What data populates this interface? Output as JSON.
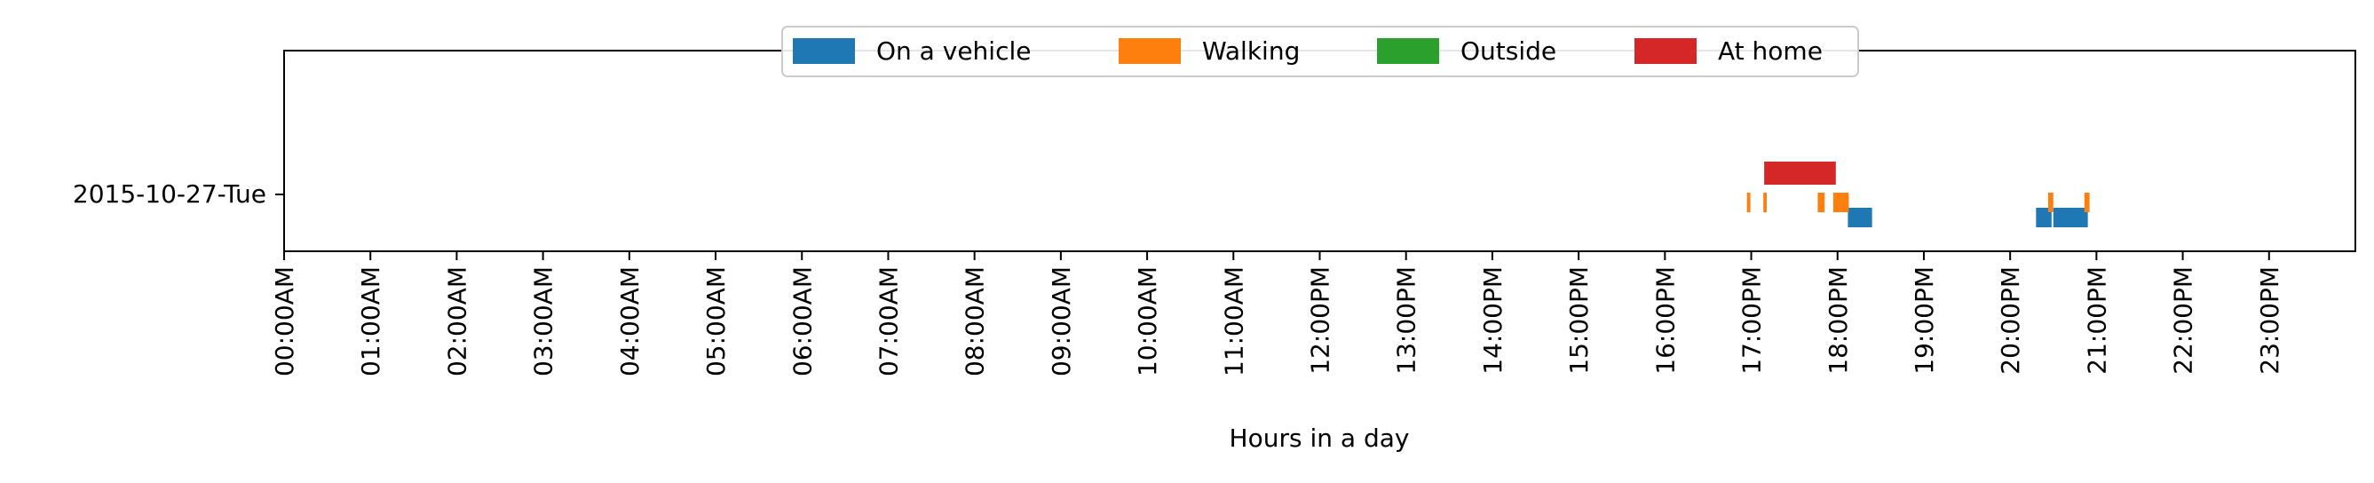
{
  "chart_data": {
    "type": "timeline",
    "title": "",
    "xlabel": "Hours in a day",
    "ylabel": "",
    "xlim": [
      0,
      24
    ],
    "x_ticks": [
      {
        "value": 0,
        "label": "00:00AM"
      },
      {
        "value": 1,
        "label": "01:00AM"
      },
      {
        "value": 2,
        "label": "02:00AM"
      },
      {
        "value": 3,
        "label": "03:00AM"
      },
      {
        "value": 4,
        "label": "04:00AM"
      },
      {
        "value": 5,
        "label": "05:00AM"
      },
      {
        "value": 6,
        "label": "06:00AM"
      },
      {
        "value": 7,
        "label": "07:00AM"
      },
      {
        "value": 8,
        "label": "08:00AM"
      },
      {
        "value": 9,
        "label": "09:00AM"
      },
      {
        "value": 10,
        "label": "10:00AM"
      },
      {
        "value": 11,
        "label": "11:00AM"
      },
      {
        "value": 12,
        "label": "12:00PM"
      },
      {
        "value": 13,
        "label": "13:00PM"
      },
      {
        "value": 14,
        "label": "14:00PM"
      },
      {
        "value": 15,
        "label": "15:00PM"
      },
      {
        "value": 16,
        "label": "16:00PM"
      },
      {
        "value": 17,
        "label": "17:00PM"
      },
      {
        "value": 18,
        "label": "18:00PM"
      },
      {
        "value": 19,
        "label": "19:00PM"
      },
      {
        "value": 20,
        "label": "20:00PM"
      },
      {
        "value": 21,
        "label": "21:00PM"
      },
      {
        "value": 22,
        "label": "22:00PM"
      },
      {
        "value": 23,
        "label": "23:00PM"
      }
    ],
    "row_labels": [
      "2015-10-27-Tue"
    ],
    "grid": false,
    "legend_position": "top-center",
    "series": [
      {
        "name": "On a vehicle",
        "color": "#1f77b4",
        "intervals": [
          {
            "start": 18.12,
            "end": 18.4
          },
          {
            "start": 20.3,
            "end": 20.48
          },
          {
            "start": 20.5,
            "end": 20.9
          }
        ]
      },
      {
        "name": "Walking",
        "color": "#ff7f0e",
        "intervals": [
          {
            "start": 16.95,
            "end": 16.99
          },
          {
            "start": 17.14,
            "end": 17.18
          },
          {
            "start": 17.77,
            "end": 17.85
          },
          {
            "start": 17.95,
            "end": 18.13
          },
          {
            "start": 20.44,
            "end": 20.5
          },
          {
            "start": 20.86,
            "end": 20.92
          }
        ]
      },
      {
        "name": "Outside",
        "color": "#2ca02c",
        "intervals": []
      },
      {
        "name": "At home",
        "color": "#d62728",
        "intervals": [
          {
            "start": 17.15,
            "end": 17.98
          }
        ]
      }
    ]
  }
}
